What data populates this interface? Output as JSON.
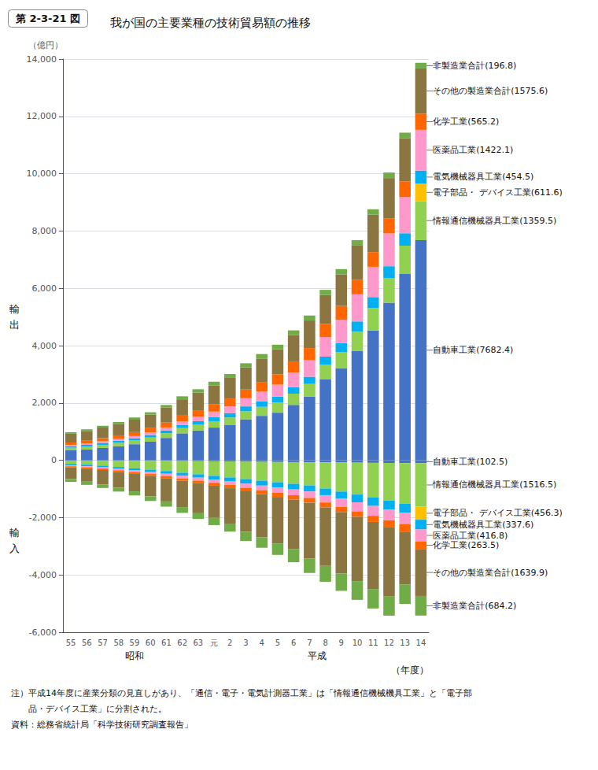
{
  "chart_data": {
    "type": "bar",
    "title": "我が国の主要業種の技術貿易額の推移",
    "subtitle": "第 2-3-21 図",
    "y_label": "（億円）",
    "x_label": "（年度）",
    "categories": [
      "55",
      "56",
      "57",
      "58",
      "59",
      "60",
      "61",
      "62",
      "63",
      "元",
      "2",
      "3",
      "4",
      "5",
      "6",
      "7",
      "8",
      "9",
      "10",
      "11",
      "12",
      "13",
      "14"
    ],
    "stacked": true,
    "grid": true,
    "ylim": [
      -6000,
      14000
    ],
    "yticks": [
      {
        "value": -6000,
        "label": "-6,000"
      },
      {
        "value": -4000,
        "label": "-4,000"
      },
      {
        "value": -2000,
        "label": "-2,000"
      },
      0,
      {
        "value": 2000,
        "label": "2,000"
      },
      {
        "value": 4000,
        "label": "4,000"
      },
      {
        "value": 6000,
        "label": "6,000"
      },
      {
        "value": 8000,
        "label": "8,000"
      },
      {
        "value": 10000,
        "label": "10,000"
      },
      {
        "value": 12000,
        "label": "12,000"
      },
      {
        "value": 14000,
        "label": "14,000"
      }
    ],
    "series": [
      {
        "name": "自動車工業(7682.4)",
        "color": "#4472c4",
        "values": [
          350,
          380,
          430,
          490,
          560,
          650,
          780,
          940,
          1040,
          1140,
          1240,
          1430,
          1550,
          1660,
          1930,
          2220,
          2820,
          3200,
          3820,
          4530,
          5500,
          6500,
          7682
        ]
      },
      {
        "name": "情報通信機械器具工業(1359.5)",
        "color": "#92d050",
        "values": [
          90,
          100,
          110,
          120,
          130,
          145,
          165,
          185,
          200,
          225,
          255,
          280,
          315,
          355,
          395,
          445,
          510,
          580,
          670,
          780,
          860,
          990,
          1360
        ]
      },
      {
        "name": "電子部品・ デバイス工業(611.6)",
        "color": "#ffc000",
        "values": [
          0,
          0,
          0,
          0,
          0,
          0,
          0,
          0,
          0,
          0,
          0,
          0,
          0,
          0,
          0,
          0,
          0,
          0,
          0,
          0,
          0,
          0,
          612
        ]
      },
      {
        "name": "電気機械器具工業(454.5)",
        "color": "#00b0f0",
        "values": [
          55,
          60,
          68,
          72,
          80,
          88,
          98,
          112,
          125,
          138,
          152,
          170,
          188,
          208,
          228,
          250,
          285,
          315,
          355,
          385,
          410,
          432,
          455
        ]
      },
      {
        "name": "医薬品工業(1422.1)",
        "color": "#ff99cc",
        "values": [
          38,
          45,
          52,
          62,
          75,
          88,
          102,
          126,
          155,
          195,
          235,
          285,
          345,
          415,
          505,
          575,
          685,
          805,
          945,
          1055,
          1145,
          1265,
          1422
        ]
      },
      {
        "name": "化学工業(565.2)",
        "color": "#ff6600",
        "values": [
          88,
          98,
          112,
          125,
          138,
          152,
          172,
          196,
          226,
          250,
          275,
          305,
          335,
          365,
          395,
          425,
          455,
          485,
          500,
          515,
          530,
          545,
          565
        ]
      },
      {
        "name": "その他の製造業合計(1575.6)",
        "color": "#8b7642",
        "values": [
          305,
          340,
          370,
          400,
          435,
          470,
          520,
          568,
          618,
          668,
          718,
          770,
          818,
          868,
          912,
          962,
          1012,
          1102,
          1202,
          1302,
          1402,
          1502,
          1576
        ]
      },
      {
        "name": "非製造業合計(196.8)",
        "color": "#70ad47",
        "values": [
          52,
          58,
          62,
          68,
          75,
          82,
          92,
          105,
          115,
          125,
          135,
          145,
          155,
          162,
          168,
          174,
          179,
          183,
          188,
          191,
          193,
          195,
          197
        ]
      },
      {
        "name": "自動車工業(102.5)",
        "color": "#4472c4",
        "values": [
          -12,
          -14,
          -16,
          -18,
          -20,
          -22,
          -24,
          -27,
          -31,
          -35,
          -41,
          -50,
          -54,
          -60,
          -64,
          -70,
          -74,
          -80,
          -84,
          -90,
          -94,
          -100,
          -103
        ]
      },
      {
        "name": "情報通信機械器具工業(1516.5)",
        "color": "#92d050",
        "values": [
          -115,
          -140,
          -170,
          -215,
          -260,
          -305,
          -352,
          -408,
          -458,
          -508,
          -558,
          -608,
          -658,
          -708,
          -758,
          -808,
          -912,
          -1012,
          -1112,
          -1212,
          -1312,
          -1412,
          -1517
        ]
      },
      {
        "name": "電子部品・ デバイス工業(456.3)",
        "color": "#ffc000",
        "values": [
          0,
          0,
          0,
          0,
          0,
          0,
          0,
          0,
          0,
          0,
          0,
          0,
          0,
          0,
          0,
          0,
          0,
          0,
          0,
          0,
          0,
          0,
          -456
        ]
      },
      {
        "name": "電気機械器具工業(337.6)",
        "color": "#00b0f0",
        "values": [
          -52,
          -57,
          -62,
          -67,
          -75,
          -85,
          -95,
          -108,
          -118,
          -130,
          -142,
          -160,
          -172,
          -185,
          -197,
          -212,
          -232,
          -252,
          -272,
          -292,
          -312,
          -328,
          -338
        ]
      },
      {
        "name": "医薬品工業(416.8)",
        "color": "#ff99cc",
        "values": [
          -30,
          -36,
          -42,
          -50,
          -59,
          -68,
          -80,
          -90,
          -102,
          -112,
          -122,
          -142,
          -162,
          -182,
          -202,
          -225,
          -255,
          -285,
          -315,
          -345,
          -375,
          -397,
          -417
        ]
      },
      {
        "name": "化学工業(263.5)",
        "color": "#ff6600",
        "values": [
          -40,
          -45,
          -50,
          -55,
          -61,
          -67,
          -73,
          -83,
          -93,
          -103,
          -113,
          -123,
          -133,
          -143,
          -153,
          -163,
          -173,
          -183,
          -193,
          -213,
          -233,
          -250,
          -264
        ]
      },
      {
        "name": "その他の製造業合計(1639.9)",
        "color": "#8b7642",
        "values": [
          -405,
          -455,
          -505,
          -555,
          -610,
          -712,
          -812,
          -918,
          -1022,
          -1122,
          -1232,
          -1412,
          -1512,
          -1622,
          -1732,
          -1952,
          -2042,
          -2142,
          -2242,
          -2342,
          -2412,
          -1842,
          -1640
        ]
      },
      {
        "name": "非製造業合計(684.2)",
        "color": "#70ad47",
        "values": [
          -102,
          -112,
          -122,
          -132,
          -142,
          -162,
          -182,
          -202,
          -225,
          -252,
          -282,
          -322,
          -362,
          -402,
          -452,
          -502,
          -552,
          -602,
          -652,
          -678,
          -684,
          -684,
          -684
        ]
      }
    ],
    "annotations": [
      {
        "text": "昭和",
        "x": "55"
      },
      {
        "text": "平成",
        "x": "元"
      },
      {
        "text": "輸出",
        "y": 5000
      },
      {
        "text": "輸入",
        "y": -2800
      },
      {
        "text": "注）平成14年度に産業分類の見直しがあり、「通信・電子・電気計測器工業」は「情報通信機械機具工業」と「電子部"
      },
      {
        "text": "　　品・デバイス工業」に分割された。"
      },
      {
        "text": "資料：総務省統計局「科学技術研究調査報告」"
      }
    ]
  }
}
